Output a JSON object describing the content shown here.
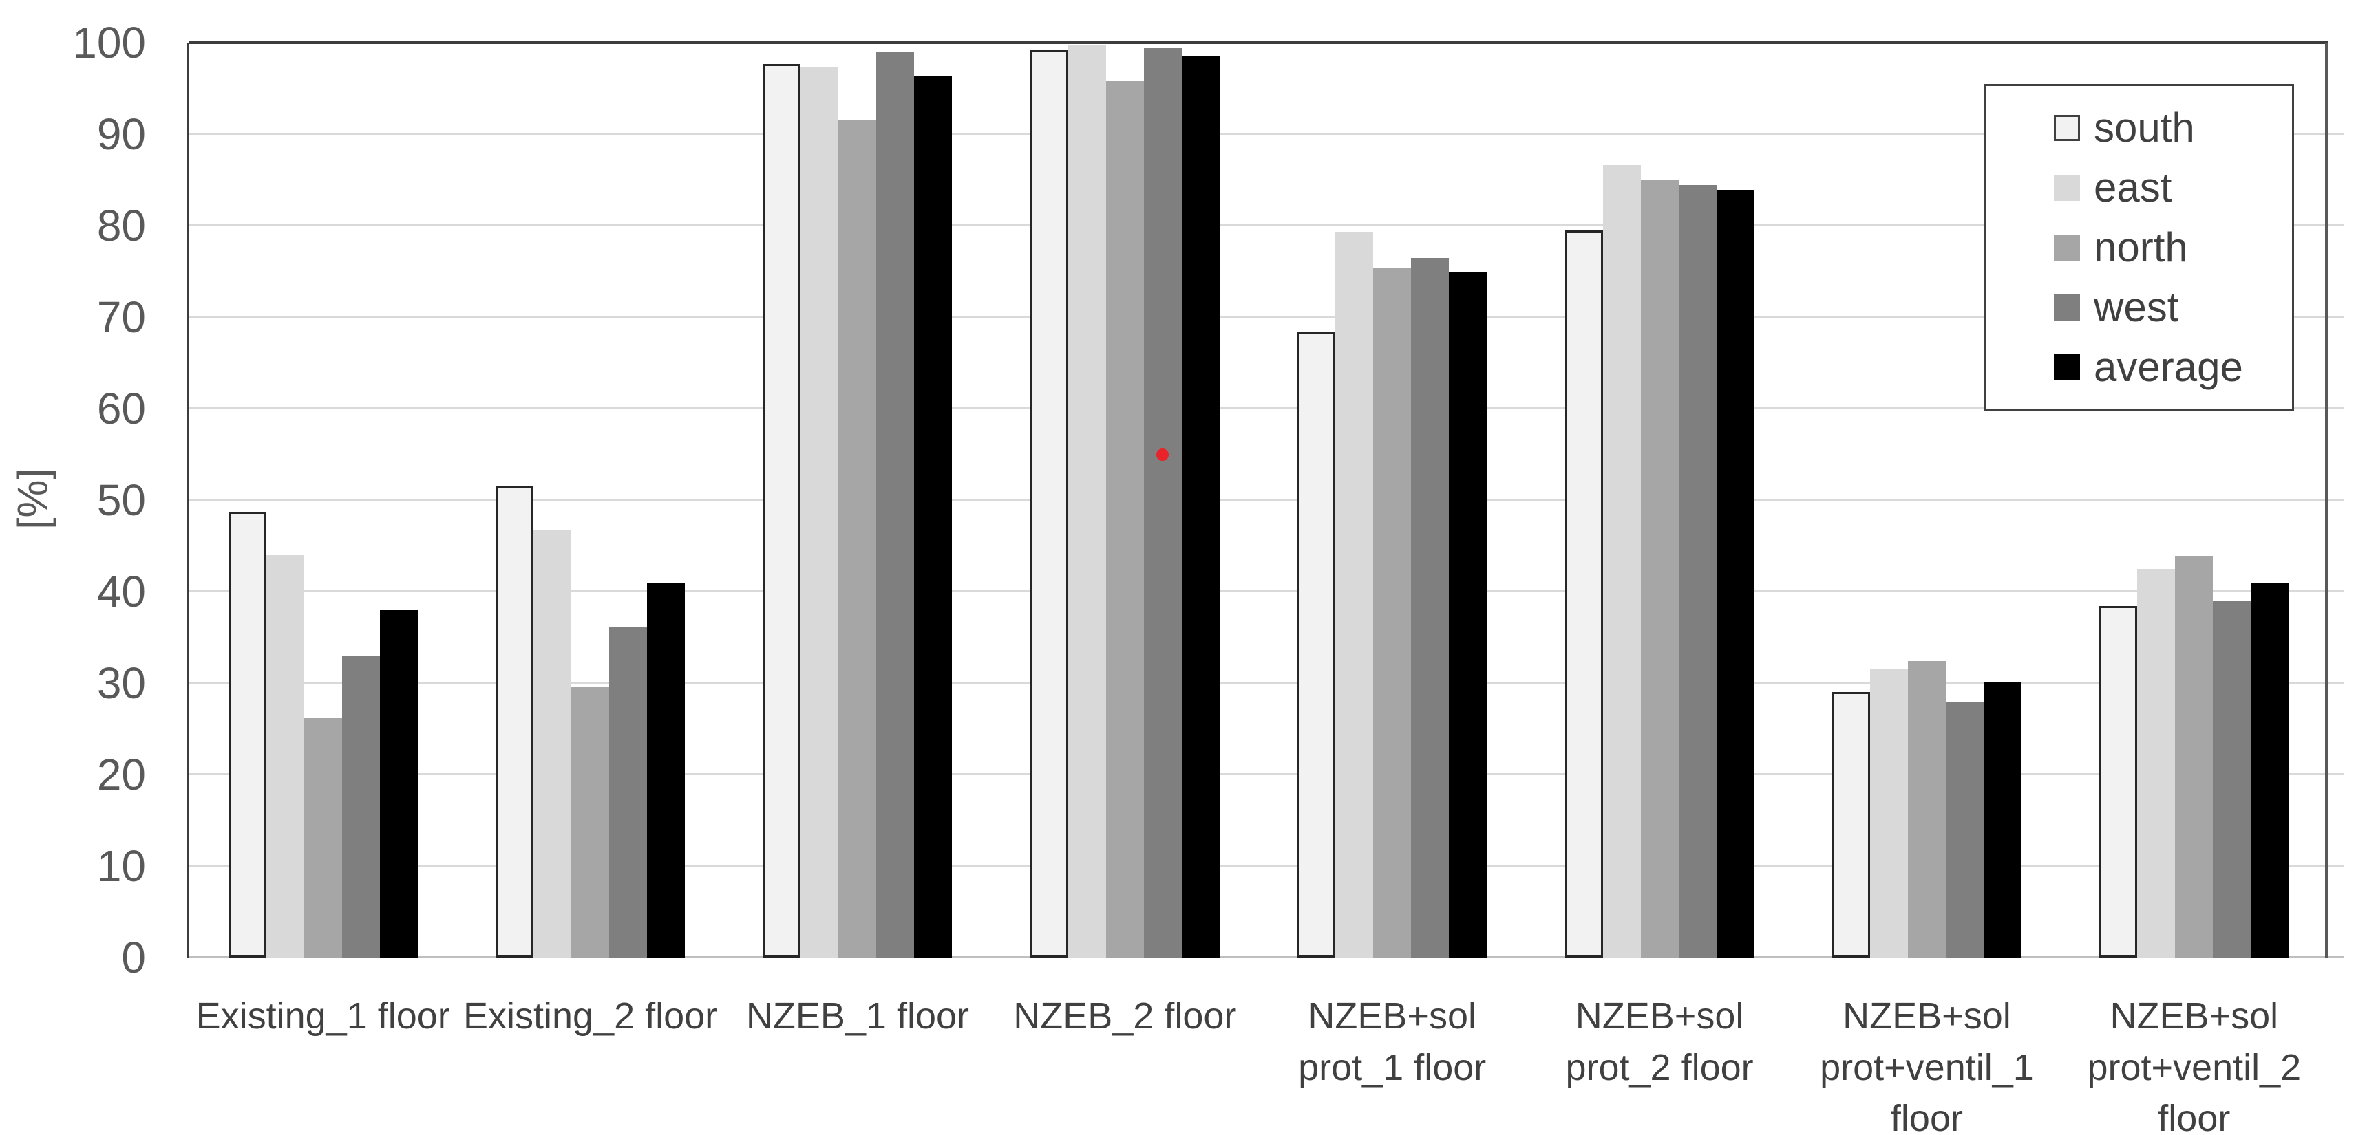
{
  "chart_data": {
    "type": "bar",
    "title": "",
    "ylabel": "[%]",
    "xlabel": "",
    "ylim": [
      0,
      100
    ],
    "ytick_step": 10,
    "yticks": [
      0,
      10,
      20,
      30,
      40,
      50,
      60,
      70,
      80,
      90,
      100
    ],
    "grid": true,
    "legend_position": "top-right",
    "categories": [
      "Existing_1 floor",
      "Existing_2 floor",
      "NZEB_1 floor",
      "NZEB_2 floor",
      "NZEB+sol\nprot_1 floor",
      "NZEB+sol\nprot_2 floor",
      "NZEB+sol\nprot+ventil_1\nfloor",
      "NZEB+sol\nprot+ventil_2\nfloor"
    ],
    "series": [
      {
        "name": "south",
        "color": "#f2f2f2",
        "border_color": "#262626",
        "values": [
          48.7,
          51.5,
          97.7,
          99.2,
          68.4,
          79.5,
          29.0,
          38.4
        ]
      },
      {
        "name": "east",
        "color": "#d9d9d9",
        "border_color": null,
        "values": [
          44.0,
          46.8,
          97.3,
          99.7,
          79.3,
          86.6,
          31.6,
          42.5
        ]
      },
      {
        "name": "north",
        "color": "#a6a6a6",
        "border_color": null,
        "values": [
          26.2,
          29.6,
          91.6,
          95.8,
          75.4,
          85.0,
          32.4,
          43.9
        ]
      },
      {
        "name": "west",
        "color": "#7f7f7f",
        "border_color": null,
        "values": [
          32.9,
          36.2,
          99.0,
          99.4,
          76.5,
          84.4,
          27.9,
          39.0
        ]
      },
      {
        "name": "average",
        "color": "#000000",
        "border_color": null,
        "values": [
          38.0,
          41.0,
          96.4,
          98.5,
          75.0,
          83.9,
          30.1,
          40.9
        ]
      }
    ],
    "annotation_marker": {
      "category": "NZEB_2 floor",
      "category_index": 3,
      "series": "west",
      "series_index": 3,
      "value": 55,
      "color": "#e8232a"
    }
  },
  "style_colors": {
    "gridline": "#d9d9d9",
    "axis_dark": "#3d3d3d",
    "axis_right": "#595959",
    "axis_bottom": "#bfbfbf",
    "tick_text": "#595959",
    "label_text": "#404040",
    "background": "#ffffff"
  }
}
